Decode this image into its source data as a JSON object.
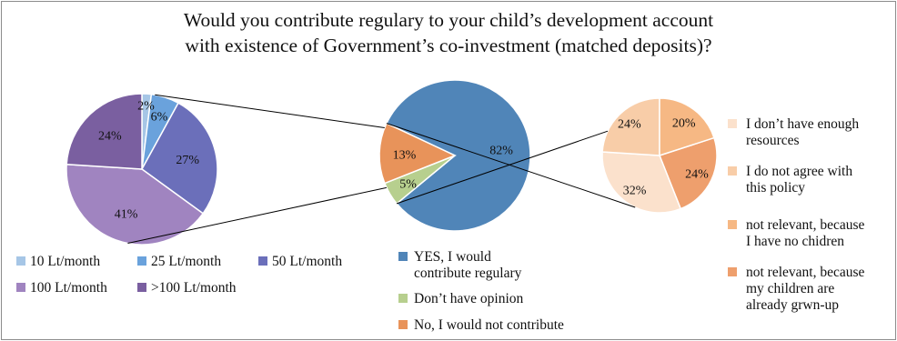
{
  "title_line1": "Would you contribute regulary to your child’s development account",
  "title_line2": "with existence of Government’s co-investment (matched deposits)?",
  "chart_data": [
    {
      "type": "pie",
      "name": "contribution amount",
      "slices": [
        {
          "label": "10 Lt/month",
          "value": 2,
          "display": "2%",
          "color": "#a6c6e6"
        },
        {
          "label": "25 Lt/month",
          "value": 6,
          "display": "6%",
          "color": "#6aa2dc"
        },
        {
          "label": "50 Lt/month",
          "value": 27,
          "display": "27%",
          "color": "#6b6fba"
        },
        {
          "label": "100 Lt/month",
          "value": 41,
          "display": "41%",
          "color": "#a084c0"
        },
        {
          "label": ">100 Lt/month",
          "value": 24,
          "display": "24%",
          "color": "#7a5fa0"
        }
      ]
    },
    {
      "type": "pie",
      "name": "main",
      "slices": [
        {
          "label": "YES, I would contribute regulary",
          "legend_lines": [
            "YES, I would",
            "contribute regulary"
          ],
          "value": 82,
          "display": "82%",
          "color": "#5085b8"
        },
        {
          "label": "Don’t have opinion",
          "legend_lines": [
            "Don’t have opinion"
          ],
          "value": 5,
          "display": "5%",
          "color": "#b7cf8e"
        },
        {
          "label": "No, I would not contribute",
          "legend_lines": [
            "No, I would not contribute"
          ],
          "value": 13,
          "display": "13%",
          "color": "#e8935a"
        }
      ]
    },
    {
      "type": "pie",
      "name": "reasons",
      "slices": [
        {
          "label": "not relevant, because my children are already grwn-up",
          "legend_lines": [
            "not relevant, because",
            "my children are",
            "already grwn-up"
          ],
          "value": 24,
          "display": "24%",
          "color": "#ee9f6d"
        },
        {
          "label": "I don’t have enough resources",
          "legend_lines": [
            "I don’t have enough",
            "resources"
          ],
          "value": 32,
          "display": "32%",
          "color": "#fbe1cc"
        },
        {
          "label": "I do not agree with this policy",
          "legend_lines": [
            "I do not agree with",
            "this policy"
          ],
          "value": 24,
          "display": "24%",
          "color": "#f8cda8"
        },
        {
          "label": "not relevant, because I have no chidren",
          "legend_lines": [
            "not relevant, because",
            "I have no chidren"
          ],
          "value": 20,
          "display": "20%",
          "color": "#f6b884"
        }
      ],
      "legend_order": [
        1,
        2,
        3,
        0
      ]
    }
  ]
}
